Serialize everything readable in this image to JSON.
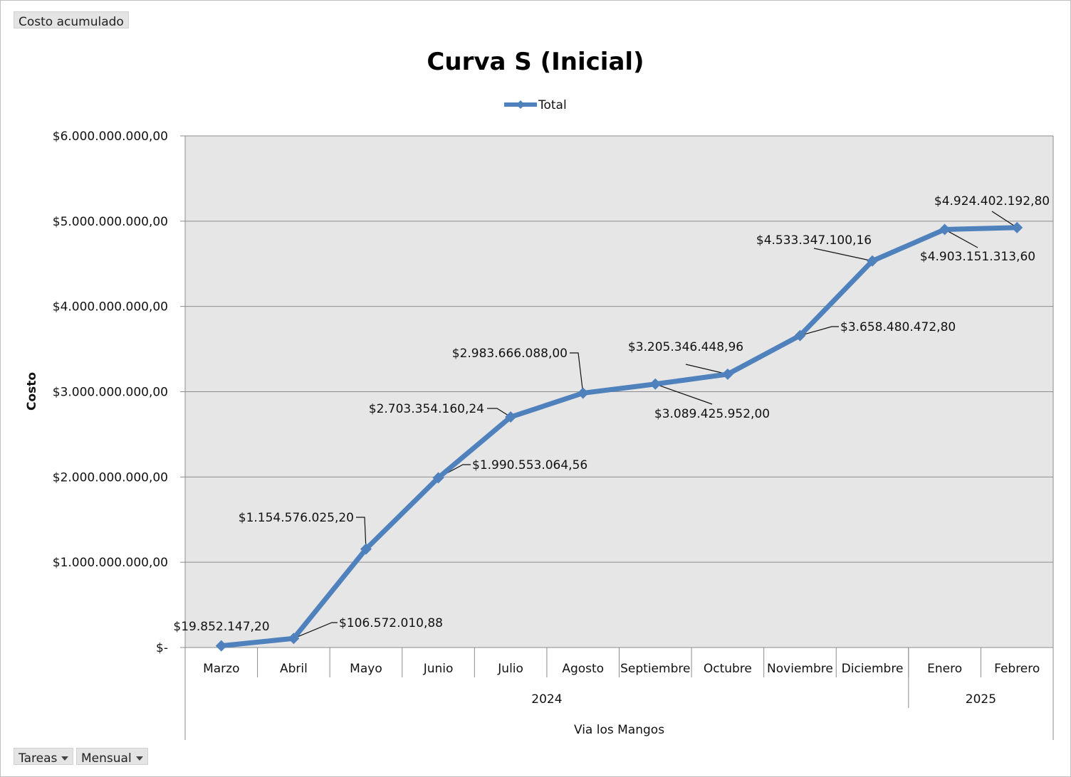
{
  "pivot_buttons": {
    "value_field": "Costo acumulado",
    "row_field_1": "Tareas",
    "row_field_2": "Mensual"
  },
  "colors": {
    "series": "#4f81bd",
    "plot_area": "#e6e6e6",
    "gridline": "#8c8c8c"
  },
  "chart_data": {
    "type": "line",
    "title": "Curva S (Inicial)",
    "ylabel": "Costo",
    "xlabel": "",
    "ylim": [
      0,
      6000000000
    ],
    "ytick_values": [
      0,
      1000000000,
      2000000000,
      3000000000,
      4000000000,
      5000000000,
      6000000000
    ],
    "ytick_labels": [
      "$-",
      "$1.000.000.000,00",
      "$2.000.000.000,00",
      "$3.000.000.000,00",
      "$4.000.000.000,00",
      "$5.000.000.000,00",
      "$6.000.000.000,00"
    ],
    "grid": true,
    "legend_position": "top",
    "categories": [
      "Marzo",
      "Abril",
      "Mayo",
      "Junio",
      "Julio",
      "Agosto",
      "Septiembre",
      "Octubre",
      "Noviembre",
      "Diciembre",
      "Enero",
      "Febrero"
    ],
    "category_groups": [
      {
        "label": "2024",
        "count": 10
      },
      {
        "label": "2025",
        "count": 2
      }
    ],
    "outer_group": "Via los Mangos",
    "series": [
      {
        "name": "Total",
        "values": [
          19852147.2,
          106572010.88,
          1154576025.2,
          1990553064.56,
          2703354160.24,
          2983666088.0,
          3089425952.0,
          3205346448.96,
          3658480472.8,
          4533347100.16,
          4903151313.6,
          4924402192.8
        ],
        "data_labels": [
          "$19.852.147,20",
          "$106.572.010,88",
          "$1.154.576.025,20",
          "$1.990.553.064,56",
          "$2.703.354.160,24",
          "$2.983.666.088,00",
          "$3.089.425.952,00",
          "$3.205.346.448,96",
          "$3.658.480.472,80",
          "$4.533.347.100,16",
          "$4.903.151.313,60",
          "$4.924.402.192,80"
        ]
      }
    ]
  }
}
